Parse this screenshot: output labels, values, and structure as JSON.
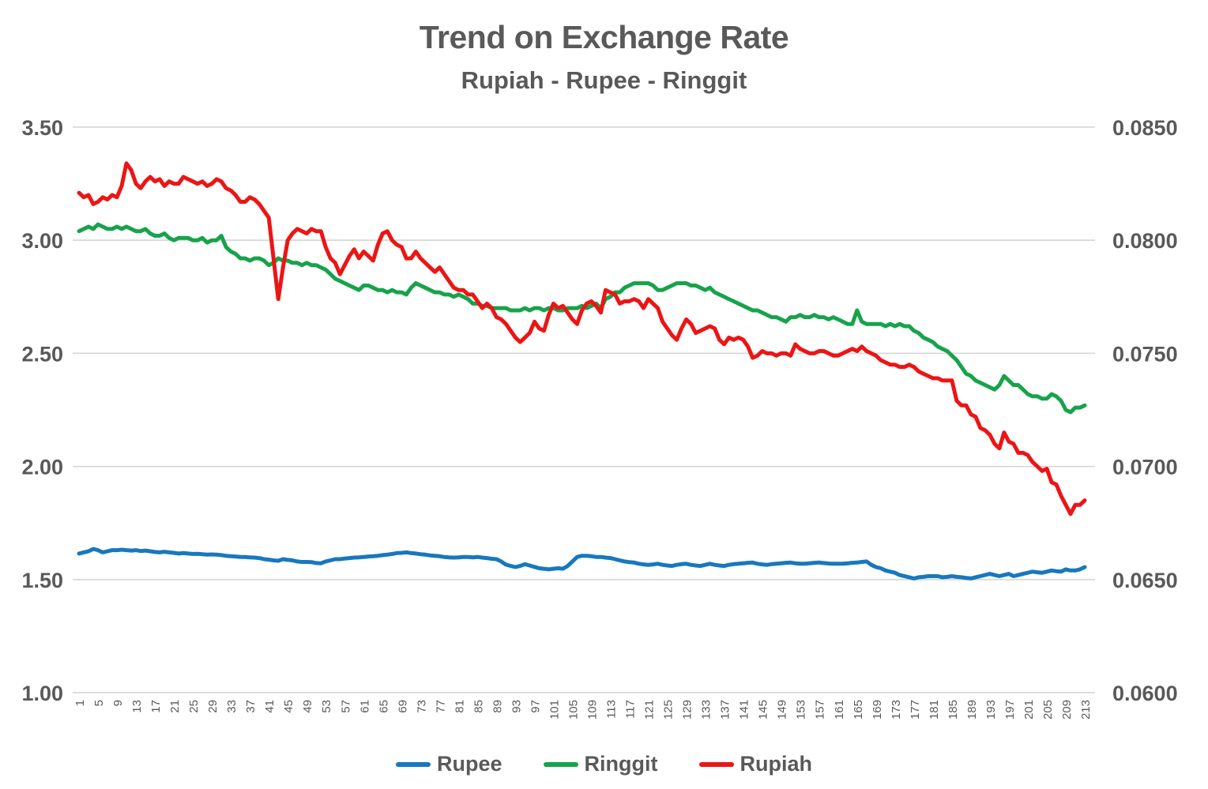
{
  "title": "Trend on Exchange Rate",
  "subtitle": "Rupiah - Rupee - Ringgit",
  "colors": {
    "background": "#ffffff",
    "text": "#595959",
    "gridline": "#d9d9d9",
    "rupee_blue": "#1778be",
    "ringgit_green": "#17a34b",
    "rupiah_red": "#ec1515"
  },
  "chart_data": {
    "type": "line",
    "title": "Trend on Exchange Rate",
    "subtitle": "Rupiah - Rupee - Ringgit",
    "grid": true,
    "legend_position": "bottom",
    "x_range": [
      1,
      213
    ],
    "x_tick_labels": [
      1,
      5,
      9,
      13,
      17,
      21,
      25,
      29,
      33,
      37,
      41,
      45,
      49,
      53,
      57,
      61,
      65,
      69,
      73,
      77,
      81,
      85,
      89,
      93,
      97,
      101,
      105,
      109,
      113,
      117,
      121,
      125,
      129,
      133,
      137,
      141,
      145,
      149,
      153,
      157,
      161,
      165,
      169,
      173,
      177,
      181,
      185,
      189,
      193,
      197,
      201,
      205,
      209,
      213
    ],
    "left_axis": {
      "min": 1.0,
      "max": 3.5,
      "ticks": [
        "3.50",
        "3.00",
        "2.50",
        "2.00",
        "1.50",
        "1.00"
      ]
    },
    "right_axis": {
      "min": 0.06,
      "max": 0.085,
      "ticks": [
        "0.0850",
        "0.0800",
        "0.0750",
        "0.0700",
        "0.0650",
        "0.0600"
      ]
    },
    "series": [
      {
        "name": "Rupee",
        "color": "#1778be",
        "values": [
          1.615,
          1.62,
          1.625,
          1.635,
          1.63,
          1.62,
          1.625,
          1.63,
          1.63,
          1.632,
          1.63,
          1.628,
          1.63,
          1.626,
          1.628,
          1.625,
          1.622,
          1.62,
          1.623,
          1.62,
          1.618,
          1.615,
          1.617,
          1.615,
          1.613,
          1.614,
          1.612,
          1.61,
          1.611,
          1.61,
          1.608,
          1.605,
          1.603,
          1.602,
          1.6,
          1.6,
          1.598,
          1.597,
          1.595,
          1.59,
          1.588,
          1.585,
          1.583,
          1.59,
          1.587,
          1.585,
          1.58,
          1.578,
          1.578,
          1.577,
          1.573,
          1.572,
          1.58,
          1.585,
          1.59,
          1.59,
          1.593,
          1.595,
          1.597,
          1.598,
          1.6,
          1.602,
          1.603,
          1.605,
          1.608,
          1.61,
          1.613,
          1.617,
          1.618,
          1.62,
          1.617,
          1.615,
          1.612,
          1.61,
          1.607,
          1.605,
          1.603,
          1.6,
          1.598,
          1.597,
          1.598,
          1.6,
          1.6,
          1.598,
          1.6,
          1.597,
          1.595,
          1.592,
          1.59,
          1.58,
          1.566,
          1.56,
          1.555,
          1.56,
          1.568,
          1.562,
          1.556,
          1.55,
          1.548,
          1.545,
          1.548,
          1.55,
          1.548,
          1.56,
          1.58,
          1.6,
          1.605,
          1.605,
          1.603,
          1.6,
          1.6,
          1.597,
          1.595,
          1.59,
          1.585,
          1.58,
          1.577,
          1.575,
          1.57,
          1.567,
          1.565,
          1.567,
          1.57,
          1.565,
          1.562,
          1.56,
          1.565,
          1.568,
          1.57,
          1.565,
          1.562,
          1.56,
          1.565,
          1.57,
          1.565,
          1.562,
          1.56,
          1.565,
          1.568,
          1.57,
          1.572,
          1.574,
          1.575,
          1.57,
          1.567,
          1.565,
          1.568,
          1.57,
          1.572,
          1.574,
          1.575,
          1.572,
          1.57,
          1.57,
          1.572,
          1.574,
          1.575,
          1.573,
          1.571,
          1.57,
          1.57,
          1.57,
          1.572,
          1.574,
          1.575,
          1.578,
          1.58,
          1.565,
          1.555,
          1.55,
          1.54,
          1.535,
          1.53,
          1.52,
          1.515,
          1.51,
          1.505,
          1.51,
          1.512,
          1.515,
          1.515,
          1.515,
          1.51,
          1.512,
          1.515,
          1.512,
          1.51,
          1.507,
          1.505,
          1.51,
          1.515,
          1.52,
          1.525,
          1.52,
          1.515,
          1.52,
          1.525,
          1.515,
          1.52,
          1.525,
          1.53,
          1.535,
          1.532,
          1.53,
          1.535,
          1.54,
          1.537,
          1.535,
          1.545,
          1.54,
          1.54,
          1.545,
          1.555
        ]
      },
      {
        "name": "Ringgit",
        "color": "#17a34b",
        "values": [
          3.04,
          3.05,
          3.06,
          3.05,
          3.07,
          3.06,
          3.05,
          3.05,
          3.06,
          3.05,
          3.06,
          3.05,
          3.04,
          3.04,
          3.05,
          3.03,
          3.02,
          3.02,
          3.03,
          3.01,
          3.0,
          3.01,
          3.01,
          3.01,
          3.0,
          3.0,
          3.01,
          2.99,
          3.0,
          3.0,
          3.02,
          2.97,
          2.95,
          2.94,
          2.92,
          2.92,
          2.91,
          2.92,
          2.92,
          2.91,
          2.89,
          2.9,
          2.92,
          2.91,
          2.91,
          2.9,
          2.9,
          2.89,
          2.9,
          2.89,
          2.89,
          2.88,
          2.87,
          2.85,
          2.83,
          2.82,
          2.81,
          2.8,
          2.79,
          2.78,
          2.8,
          2.8,
          2.79,
          2.78,
          2.78,
          2.77,
          2.78,
          2.77,
          2.77,
          2.76,
          2.79,
          2.81,
          2.8,
          2.79,
          2.78,
          2.77,
          2.77,
          2.76,
          2.76,
          2.75,
          2.76,
          2.75,
          2.74,
          2.72,
          2.72,
          2.71,
          2.71,
          2.7,
          2.7,
          2.7,
          2.7,
          2.69,
          2.69,
          2.69,
          2.7,
          2.69,
          2.7,
          2.7,
          2.69,
          2.7,
          2.7,
          2.69,
          2.69,
          2.7,
          2.7,
          2.7,
          2.71,
          2.7,
          2.71,
          2.72,
          2.7,
          2.74,
          2.75,
          2.77,
          2.77,
          2.79,
          2.8,
          2.81,
          2.81,
          2.81,
          2.81,
          2.8,
          2.78,
          2.78,
          2.79,
          2.8,
          2.81,
          2.81,
          2.81,
          2.8,
          2.8,
          2.79,
          2.78,
          2.79,
          2.77,
          2.76,
          2.75,
          2.74,
          2.73,
          2.72,
          2.71,
          2.7,
          2.69,
          2.69,
          2.68,
          2.67,
          2.66,
          2.66,
          2.65,
          2.64,
          2.66,
          2.66,
          2.67,
          2.66,
          2.66,
          2.67,
          2.66,
          2.66,
          2.65,
          2.66,
          2.65,
          2.64,
          2.63,
          2.63,
          2.69,
          2.64,
          2.63,
          2.63,
          2.63,
          2.63,
          2.62,
          2.63,
          2.62,
          2.63,
          2.62,
          2.62,
          2.6,
          2.59,
          2.57,
          2.56,
          2.55,
          2.53,
          2.52,
          2.51,
          2.49,
          2.47,
          2.44,
          2.41,
          2.4,
          2.38,
          2.37,
          2.36,
          2.35,
          2.34,
          2.36,
          2.4,
          2.38,
          2.36,
          2.36,
          2.34,
          2.32,
          2.31,
          2.31,
          2.3,
          2.3,
          2.32,
          2.31,
          2.29,
          2.25,
          2.24,
          2.26,
          2.26,
          2.27
        ]
      },
      {
        "name": "Rupiah",
        "color": "#ec1515",
        "values": [
          3.21,
          3.19,
          3.2,
          3.16,
          3.17,
          3.19,
          3.18,
          3.2,
          3.19,
          3.24,
          3.34,
          3.31,
          3.25,
          3.23,
          3.26,
          3.28,
          3.26,
          3.27,
          3.24,
          3.26,
          3.25,
          3.25,
          3.28,
          3.27,
          3.26,
          3.25,
          3.26,
          3.24,
          3.25,
          3.27,
          3.26,
          3.23,
          3.22,
          3.2,
          3.17,
          3.17,
          3.19,
          3.18,
          3.16,
          3.13,
          3.1,
          2.92,
          2.74,
          2.88,
          3.0,
          3.03,
          3.05,
          3.04,
          3.03,
          3.05,
          3.04,
          3.04,
          2.97,
          2.92,
          2.9,
          2.85,
          2.89,
          2.93,
          2.96,
          2.92,
          2.95,
          2.93,
          2.91,
          2.98,
          3.03,
          3.04,
          3.0,
          2.98,
          2.97,
          2.92,
          2.92,
          2.95,
          2.92,
          2.9,
          2.88,
          2.86,
          2.88,
          2.85,
          2.82,
          2.79,
          2.78,
          2.78,
          2.76,
          2.76,
          2.73,
          2.7,
          2.72,
          2.7,
          2.66,
          2.65,
          2.63,
          2.6,
          2.57,
          2.55,
          2.57,
          2.59,
          2.64,
          2.61,
          2.6,
          2.67,
          2.72,
          2.7,
          2.71,
          2.68,
          2.65,
          2.63,
          2.69,
          2.72,
          2.73,
          2.71,
          2.68,
          2.78,
          2.77,
          2.76,
          2.72,
          2.73,
          2.73,
          2.74,
          2.73,
          2.7,
          2.74,
          2.72,
          2.7,
          2.64,
          2.61,
          2.58,
          2.56,
          2.61,
          2.65,
          2.63,
          2.59,
          2.6,
          2.61,
          2.62,
          2.61,
          2.56,
          2.54,
          2.57,
          2.56,
          2.57,
          2.56,
          2.53,
          2.48,
          2.49,
          2.51,
          2.5,
          2.5,
          2.49,
          2.5,
          2.5,
          2.49,
          2.54,
          2.52,
          2.51,
          2.5,
          2.5,
          2.51,
          2.51,
          2.5,
          2.49,
          2.49,
          2.5,
          2.51,
          2.52,
          2.51,
          2.53,
          2.51,
          2.5,
          2.49,
          2.47,
          2.46,
          2.45,
          2.45,
          2.44,
          2.44,
          2.45,
          2.44,
          2.42,
          2.41,
          2.4,
          2.39,
          2.39,
          2.38,
          2.38,
          2.38,
          2.29,
          2.27,
          2.27,
          2.23,
          2.22,
          2.17,
          2.16,
          2.14,
          2.1,
          2.08,
          2.15,
          2.11,
          2.1,
          2.06,
          2.06,
          2.05,
          2.02,
          2.0,
          1.98,
          1.99,
          1.93,
          1.92,
          1.87,
          1.83,
          1.79,
          1.83,
          1.83,
          1.85
        ]
      }
    ]
  },
  "legend": {
    "items": [
      {
        "label": "Rupee",
        "color": "#1778be"
      },
      {
        "label": "Ringgit",
        "color": "#17a34b"
      },
      {
        "label": "Rupiah",
        "color": "#ec1515"
      }
    ]
  }
}
